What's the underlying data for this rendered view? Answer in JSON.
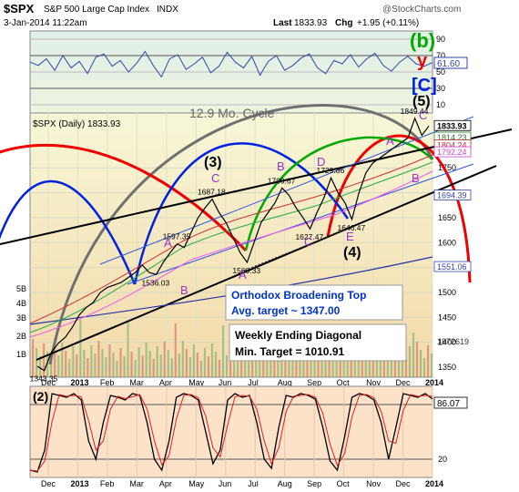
{
  "header": {
    "symbol": "$SPX",
    "name": "S&P 500 Large Cap Index",
    "exchange": "INDX",
    "datetime": "3-Jan-2014 11:22am",
    "last_label": "Last",
    "last_value": "1833.93",
    "chg_label": "Chg",
    "chg_value": "+1.95 (+0.11%)",
    "watermark": "@StockCharts.com"
  },
  "colors": {
    "price": "#000000",
    "rsi": "#3344aa",
    "cycle_gray": "#666666",
    "cycle_red": "#ee0000",
    "cycle_blue": "#0022dd",
    "cycle_green": "#00aa00",
    "wave_label": "#9933cc",
    "box_text": "#0033cc",
    "panel_bg": "#fffff4",
    "price_bg_top": "#f6f7d8",
    "price_bg_bottom": "#f4e0b0",
    "osc_bg": "#fbe2c8"
  },
  "chart_data": [
    {
      "type": "line",
      "panel": "rsi-top",
      "y_ticks": [
        "90",
        "70",
        "50",
        "30",
        "10"
      ],
      "ylim": [
        0,
        100
      ],
      "current_value_label": "61.60",
      "series": [
        {
          "values": [
            62,
            58,
            66,
            52,
            70,
            55,
            63,
            48,
            68,
            72,
            57,
            64,
            50,
            61,
            75,
            58,
            44,
            66,
            71,
            53,
            60,
            68,
            49,
            57,
            74,
            62,
            55,
            69,
            46,
            63,
            70,
            52,
            58,
            67,
            72,
            55,
            48,
            64,
            60,
            71,
            56,
            66,
            73,
            58,
            51,
            62,
            69,
            60,
            57,
            61.6
          ]
        }
      ]
    },
    {
      "type": "line",
      "panel": "price",
      "title": "$SPX (Daily) 1833.93",
      "ylim": [
        1330,
        1860
      ],
      "y_ticks": [
        "1750",
        "1700",
        "1650",
        "1600",
        "1550",
        "1500",
        "1450",
        "1400",
        "1350"
      ],
      "highlighted_values": [
        "1833.93",
        "1814.23",
        "1804.24",
        "1792.24",
        "1694.39",
        "1551.06"
      ],
      "volume_ticks": [
        "5B",
        "4B",
        "3B",
        "2B",
        "1B"
      ],
      "volume_value": "1872619",
      "x_ticks": [
        "Dec",
        "2013",
        "Feb",
        "Mar",
        "Apr",
        "May",
        "Jun",
        "Jul",
        "Aug",
        "Sep",
        "Oct",
        "Nov",
        "Dec",
        "2014"
      ],
      "series": [
        {
          "name": "$SPX",
          "x": [
            0,
            1,
            2,
            3,
            4,
            5,
            6,
            7,
            8,
            9,
            10,
            11,
            12,
            13,
            14,
            15,
            16,
            17,
            18,
            19,
            20,
            21,
            22,
            23,
            24,
            25,
            26,
            27,
            28,
            29,
            30,
            31,
            32,
            33,
            34,
            35,
            36,
            37,
            38,
            39,
            40,
            41,
            42,
            43,
            44,
            45,
            46,
            47,
            48,
            49,
            50,
            51,
            52,
            53,
            54,
            55,
            56
          ],
          "values": [
            1352,
            1343.35,
            1380,
            1398,
            1410,
            1430,
            1455,
            1470,
            1480,
            1500,
            1510,
            1515,
            1520,
            1530,
            1540,
            1555,
            1540,
            1536.03,
            1560,
            1580,
            1597.35,
            1590,
            1620,
            1650,
            1670,
            1687.18,
            1660,
            1640,
            1610,
            1580,
            1560.33,
            1600,
            1640,
            1660,
            1680,
            1709.67,
            1695,
            1670,
            1650,
            1627.47,
            1660,
            1690,
            1729.86,
            1700,
            1680,
            1646.47,
            1700,
            1740,
            1760,
            1770,
            1780,
            1790,
            1800,
            1810,
            1849.44,
            1815,
            1833.93
          ]
        }
      ],
      "annotations": [
        "1343.35",
        "1536.03",
        "1597.35",
        "1687.18",
        "1560.33",
        "1709.67",
        "1627.47",
        "1729.86",
        "1646.47",
        "1849.44"
      ],
      "cycle_label": "12.9 Mo. Cycle",
      "wave_labels": [
        "(b)",
        "y",
        "[C]",
        "(5)",
        "C",
        "A",
        "B",
        "(3)",
        "C",
        "A",
        "B",
        "D",
        "C",
        "E",
        "(4)",
        "A",
        "B",
        "A"
      ]
    },
    {
      "type": "line",
      "panel": "oscillator",
      "label": "(2)",
      "ylim": [
        0,
        100
      ],
      "y_ticks": [
        "80",
        "20"
      ],
      "current_value_label": "86.07",
      "x_ticks": [
        "Dec",
        "2013",
        "Feb",
        "Mar",
        "Apr",
        "May",
        "Jun",
        "Jul",
        "Aug",
        "Sep",
        "Oct",
        "Nov",
        "Dec",
        "2014"
      ],
      "series": [
        {
          "values": [
            8,
            6,
            30,
            92,
            90,
            88,
            92,
            85,
            40,
            20,
            60,
            90,
            88,
            85,
            92,
            90,
            60,
            20,
            8,
            40,
            88,
            92,
            90,
            85,
            50,
            15,
            30,
            85,
            92,
            88,
            90,
            60,
            20,
            10,
            55,
            90,
            88,
            92,
            90,
            86,
            55,
            18,
            8,
            45,
            88,
            92,
            90,
            85,
            60,
            20,
            55,
            92,
            90,
            88,
            92,
            86.07
          ]
        }
      ]
    }
  ],
  "boxes": {
    "broadening_line1": "Orthodox Broadening Top",
    "broadening_line2": "Avg. target ~ 1347.00",
    "diagonal_line1": "Weekly Ending Diagonal",
    "diagonal_line2": "Min. Target = 1010.91"
  }
}
